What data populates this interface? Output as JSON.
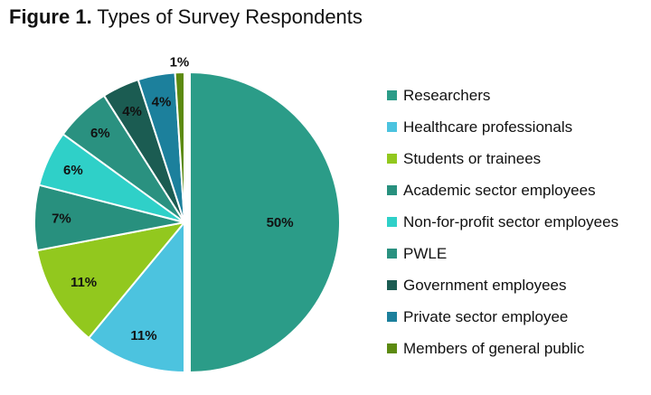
{
  "title": {
    "prefix": "Figure 1.",
    "text": "Types of Survey Respondents"
  },
  "chart_data": {
    "type": "pie",
    "title": "Types of Survey Respondents",
    "legend_position": "right",
    "slices": [
      {
        "name": "Researchers",
        "value": 50,
        "label": "50%",
        "color": "#2b9c88",
        "exploded": true
      },
      {
        "name": "Healthcare professionals",
        "value": 11,
        "label": "11%",
        "color": "#4cc3df"
      },
      {
        "name": "Students or trainees",
        "value": 11,
        "label": "11%",
        "color": "#92c81e"
      },
      {
        "name": "Academic sector employees",
        "value": 7,
        "label": "7%",
        "color": "#28907e"
      },
      {
        "name": "Non-for-profit sector employees",
        "value": 6,
        "label": "6%",
        "color": "#2fd0c8"
      },
      {
        "name": "PWLE",
        "value": 6,
        "label": "6%",
        "color": "#2a9180"
      },
      {
        "name": "Government employees",
        "value": 4,
        "label": "4%",
        "color": "#1b5c52"
      },
      {
        "name": "Private sector employee",
        "value": 4,
        "label": "4%",
        "color": "#1c809c"
      },
      {
        "name": "Members of general public",
        "value": 1,
        "label": "1%",
        "color": "#5c8a10"
      }
    ]
  }
}
